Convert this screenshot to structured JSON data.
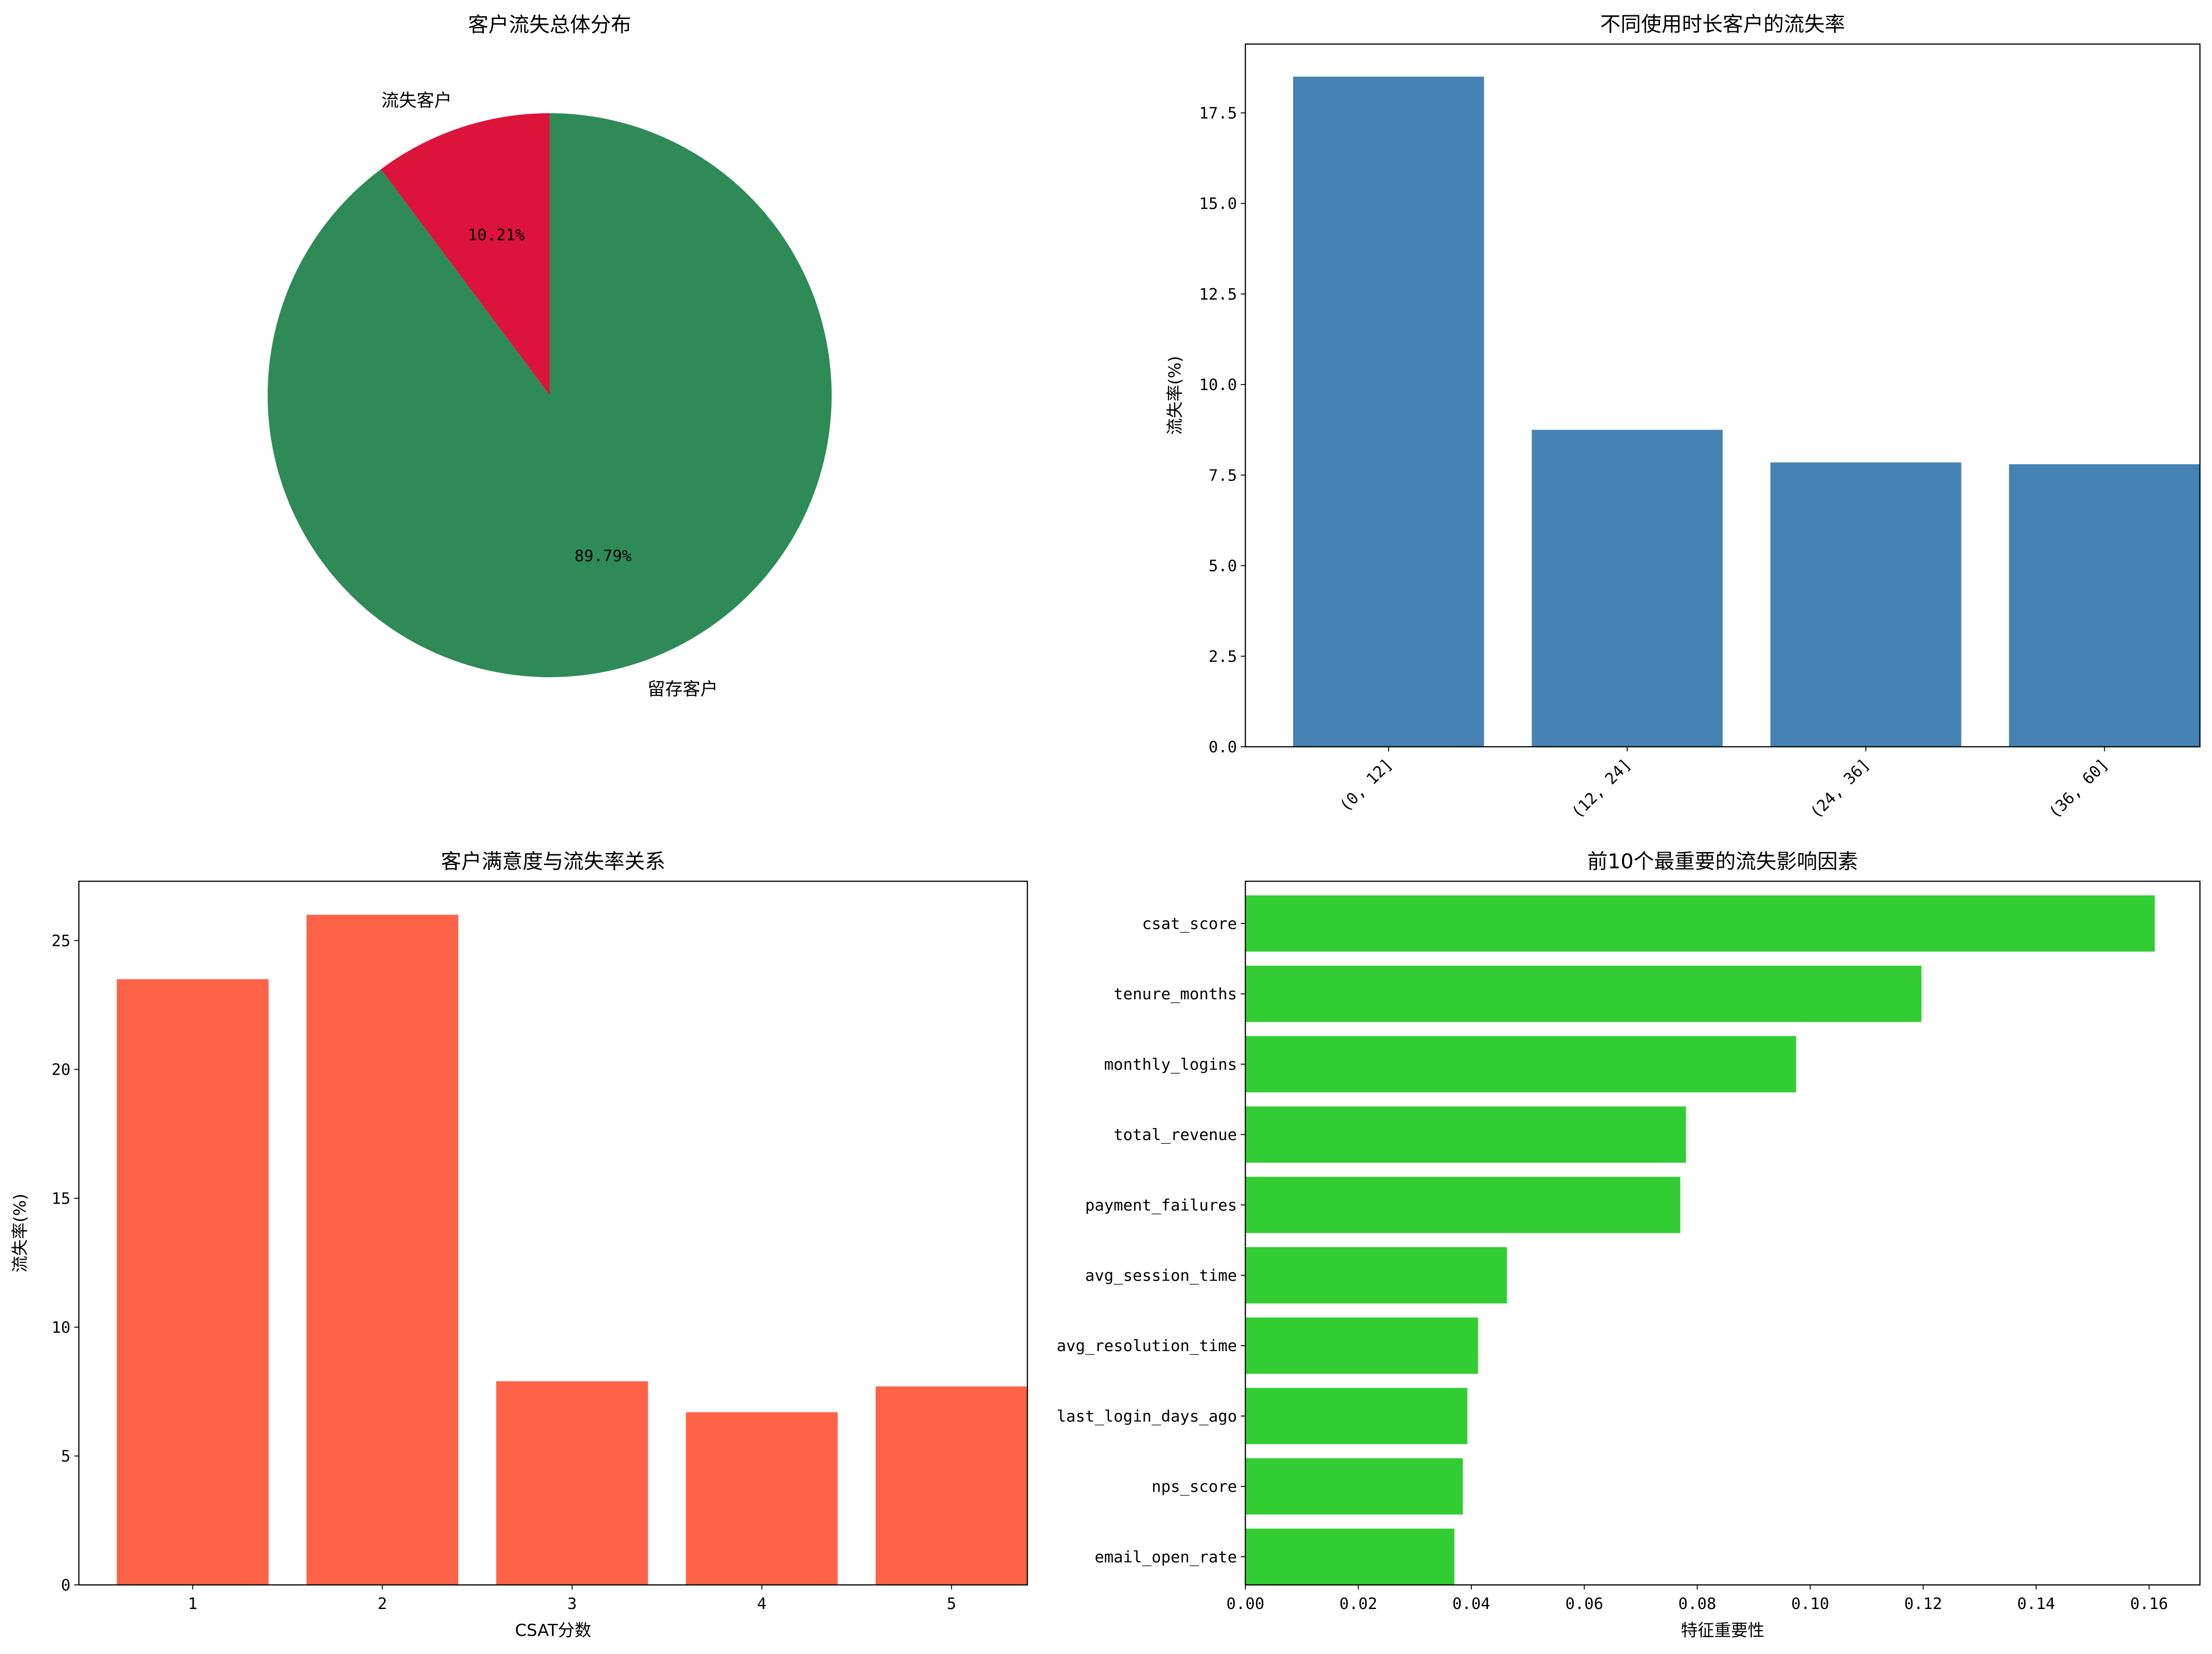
{
  "chart_data": [
    {
      "type": "pie",
      "title": "客户流失总体分布",
      "slices": [
        {
          "label": "留存客户",
          "value": 89.79,
          "pct_label": "89.79%",
          "color": "#2e8b57"
        },
        {
          "label": "流失客户",
          "value": 10.21,
          "pct_label": "10.21%",
          "color": "#dc143c"
        }
      ]
    },
    {
      "type": "bar",
      "title": "不同使用时长客户的流失率",
      "xlabel": "",
      "ylabel": "流失率(%)",
      "categories": [
        "(0, 12]",
        "(12, 24]",
        "(24, 36]",
        "(36, 60]"
      ],
      "values": [
        18.5,
        8.75,
        7.85,
        7.8
      ],
      "ylim": [
        0,
        19.4
      ],
      "yticks": [
        "0.0",
        "2.5",
        "5.0",
        "7.5",
        "10.0",
        "12.5",
        "15.0",
        "17.5"
      ],
      "color": "#4682b4"
    },
    {
      "type": "bar",
      "title": "客户满意度与流失率关系",
      "xlabel": "CSAT分数",
      "ylabel": "流失率(%)",
      "categories": [
        "1",
        "2",
        "3",
        "4",
        "5"
      ],
      "values": [
        23.5,
        26.0,
        7.9,
        6.7,
        7.7
      ],
      "ylim": [
        0,
        27.3
      ],
      "yticks": [
        "0",
        "5",
        "10",
        "15",
        "20",
        "25"
      ],
      "color": "#ff6347"
    },
    {
      "type": "bar",
      "orientation": "horizontal",
      "title": "前10个最重要的流失影响因素",
      "xlabel": "特征重要性",
      "ylabel": "",
      "categories": [
        "csat_score",
        "tenure_months",
        "monthly_logins",
        "total_revenue",
        "payment_failures",
        "avg_session_time",
        "avg_resolution_time",
        "last_login_days_ago",
        "nps_score",
        "email_open_rate"
      ],
      "values": [
        0.161,
        0.1197,
        0.0975,
        0.078,
        0.077,
        0.0463,
        0.0412,
        0.0393,
        0.0385,
        0.037
      ],
      "xlim": [
        0,
        0.169
      ],
      "xticks": [
        "0.00",
        "0.02",
        "0.04",
        "0.06",
        "0.08",
        "0.10",
        "0.12",
        "0.14",
        "0.16"
      ],
      "color": "#32cd32"
    }
  ]
}
